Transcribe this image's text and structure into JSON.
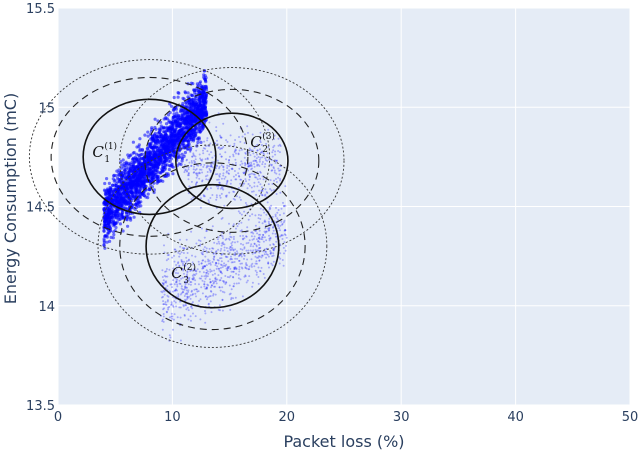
{
  "chart_data": {
    "type": "scatter",
    "title": "",
    "xlabel": "Packet loss (%)",
    "ylabel": "Energy Consumption (mC)",
    "xlim": [
      0,
      50
    ],
    "ylim": [
      13.5,
      15.5
    ],
    "x_ticks": [
      "0",
      "10",
      "20",
      "30",
      "40",
      "50"
    ],
    "y_ticks": [
      "13.5",
      "14",
      "14.5",
      "15",
      "15.5"
    ],
    "grid": true,
    "point_color": "#0000ff",
    "plot_background": "#e5ecf6",
    "clusters": [
      {
        "label": "C",
        "sub": "1",
        "sup": "(1)",
        "center": [
          8.0,
          14.75
        ],
        "radius_solid": [
          5.8,
          0.29
        ],
        "radius_dashed": [
          8.6,
          0.4
        ],
        "radius_dotted": [
          10.5,
          0.49
        ],
        "label_at": [
          3.0,
          14.75
        ],
        "cloud": {
          "x_range": [
            4.0,
            13.0
          ],
          "y_at_xmin": 14.45,
          "slope": 0.065,
          "spread": 0.07,
          "n": 2600
        }
      },
      {
        "label": "C",
        "sub": "2",
        "sup": "(3)",
        "center": [
          15.2,
          14.73
        ],
        "radius_solid": [
          4.9,
          0.24
        ],
        "radius_dashed": [
          7.6,
          0.36
        ],
        "radius_dotted": [
          9.8,
          0.47
        ],
        "label_at": [
          16.8,
          14.8
        ],
        "cloud": {
          "x_range": [
            11.0,
            19.5
          ],
          "y_at_xmin": 14.7,
          "slope": 0.0,
          "spread": 0.09,
          "n": 500
        }
      },
      {
        "label": "C",
        "sub": "3",
        "sup": "(2)",
        "center": [
          13.5,
          14.3
        ],
        "radius_solid": [
          5.8,
          0.31
        ],
        "radius_dashed": [
          8.1,
          0.42
        ],
        "radius_dotted": [
          10.0,
          0.51
        ],
        "label_at": [
          9.9,
          14.14
        ],
        "cloud": {
          "x_range": [
            9.0,
            20.0
          ],
          "y_at_xmin": 14.05,
          "slope": 0.03,
          "spread": 0.1,
          "n": 900
        }
      }
    ]
  }
}
